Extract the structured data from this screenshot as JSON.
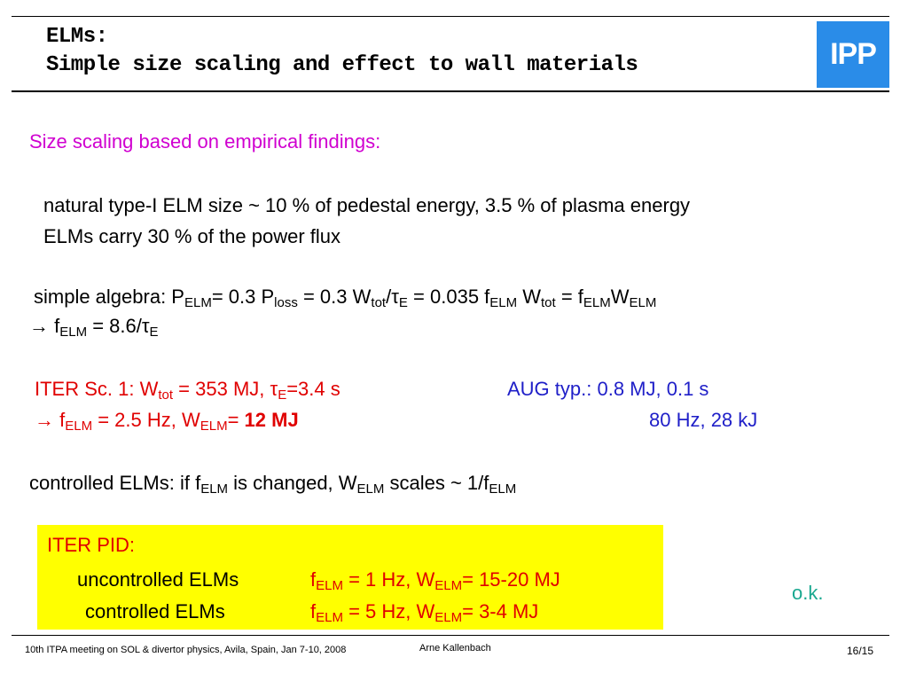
{
  "header": {
    "title_line1": "ELMs:",
    "title_line2": "Simple size scaling and effect to wall materials",
    "logo_text": "IPP"
  },
  "content": {
    "section_heading": "Size scaling based on empirical findings:",
    "line1": "natural type-I ELM size ~ 10 % of pedestal energy, 3.5 % of plasma energy",
    "line2": "ELMs carry 30 % of the power flux",
    "algebra": {
      "p1": "simple algebra: P",
      "s1": "ELM",
      "p2": "= 0.3 P",
      "s2": "loss",
      "p3": " = 0.3 W",
      "s3": "tot",
      "p4": "/τ",
      "s4": "E",
      "p5": " = 0.035 f",
      "s5": "ELM",
      "p6": " W",
      "s6": "tot",
      "p7": " = f",
      "s7": "ELM",
      "p8": "W",
      "s8": "ELM"
    },
    "result": {
      "p1": "→ f",
      "s1": "ELM",
      "p2": " = 8.6/τ",
      "s2": "E"
    },
    "iter": {
      "p1": "ITER Sc. 1: W",
      "s1": "tot",
      "p2": " = 353 MJ, τ",
      "s2": "E",
      "p3": "=3.4 s",
      "r1": "→ f",
      "rs1": "ELM",
      "r2": " = 2.5 Hz, W",
      "rs2": "ELM",
      "r3": "= ",
      "r_bold": "12 MJ"
    },
    "aug": {
      "line1": "AUG typ.:  0.8 MJ, 0.1 s",
      "line2": "80 Hz, 28 kJ"
    },
    "controlled": {
      "p1": "controlled ELMs: if f",
      "s1": "ELM",
      "p2": " is changed, W",
      "s2": "ELM",
      "p3": " scales ~ 1/f",
      "s3": "ELM"
    },
    "box": {
      "title": "ITER PID:",
      "row1_label": "uncontrolled ELMs",
      "row1_p1": "f",
      "row1_s1": "ELM",
      "row1_p2": " = 1 Hz, W",
      "row1_s2": "ELM",
      "row1_p3": "= 15-20 MJ",
      "row2_label": "controlled ELMs",
      "row2_p1": "f",
      "row2_s1": "ELM",
      "row2_p2": " = 5 Hz, W",
      "row2_s2": "ELM",
      "row2_p3": "= 3-4 MJ"
    },
    "ok_label": "o.k."
  },
  "footer": {
    "meeting": "10th ITPA meeting on SOL & divertor physics, Avila, Spain, Jan 7-10, 2008",
    "author": "Arne Kallenbach",
    "page": "16/15"
  },
  "colors": {
    "heading": "#d000d0",
    "iter": "#e00000",
    "aug": "#1f1fc8",
    "ok": "#1aa890",
    "box": "#ffff00",
    "logo": "#2a8ce8"
  }
}
